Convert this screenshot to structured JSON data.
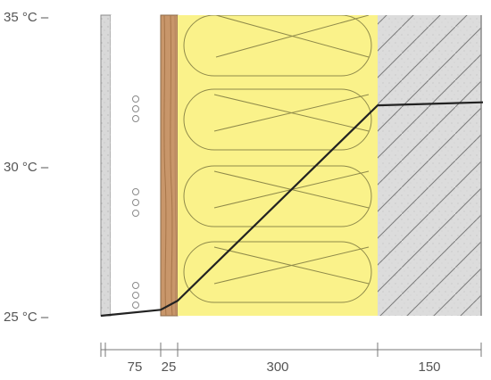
{
  "temperature_axis": {
    "unit": "°C",
    "ticks": [
      {
        "label": "35 °C –",
        "value": 35
      },
      {
        "label": "30 °C –",
        "value": 30
      },
      {
        "label": "25 °C –",
        "value": 25
      }
    ],
    "range": [
      25,
      35
    ]
  },
  "layers": [
    {
      "name": "plaster-board",
      "thickness_label": "",
      "color": "#d9d9d9"
    },
    {
      "name": "service-cavity",
      "thickness_label": "75",
      "color": "#ffffff"
    },
    {
      "name": "wood-board",
      "thickness_label": "25",
      "color": "#c8966a"
    },
    {
      "name": "insulation",
      "thickness_label": "300",
      "color": "#faf28a"
    },
    {
      "name": "concrete",
      "thickness_label": "150",
      "color": "#dcdcdc"
    }
  ],
  "temperature_profile": {
    "unit": "°C",
    "points": [
      {
        "at": "interior surface",
        "value": 25.0
      },
      {
        "at": "cavity / wood board",
        "value": 25.2
      },
      {
        "at": "wood board / insulation",
        "value": 25.5
      },
      {
        "at": "insulation / concrete",
        "value": 32.0
      },
      {
        "at": "exterior surface",
        "value": 32.1
      }
    ]
  },
  "colors": {
    "profile_line": "#222222",
    "outline": "#8a8a8a",
    "insulation_stroke": "#8f8a4a",
    "hatch": "#7a7a7a",
    "text": "#555555"
  }
}
